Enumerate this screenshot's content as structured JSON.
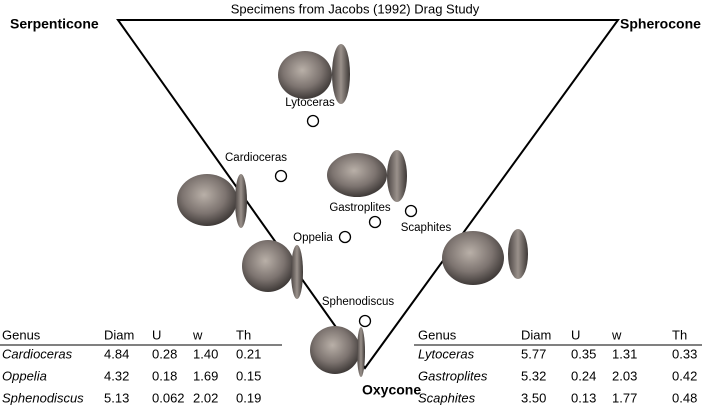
{
  "title": "Specimens from Jacobs (1992) Drag Study",
  "vertices": {
    "top_left": "Serpenticone",
    "top_right": "Spherocone",
    "bottom": "Oxycone"
  },
  "specimens": [
    {
      "label": "Lytoceras"
    },
    {
      "label": "Cardioceras"
    },
    {
      "label": "Gastroplites"
    },
    {
      "label": "Scaphites"
    },
    {
      "label": "Oppelia"
    },
    {
      "label": "Sphenodiscus"
    }
  ],
  "left_table": {
    "header": [
      "Genus",
      "Diam",
      "U",
      "w",
      "Th"
    ],
    "rows": [
      [
        "Cardioceras",
        "4.84",
        "0.28",
        "1.40",
        "0.21"
      ],
      [
        "Oppelia",
        "4.32",
        "0.18",
        "1.69",
        "0.15"
      ],
      [
        "Sphenodiscus",
        "5.13",
        "0.062",
        "2.02",
        "0.19"
      ]
    ]
  },
  "right_table": {
    "header": [
      "Genus",
      "Diam",
      "U",
      "w",
      "Th"
    ],
    "rows": [
      [
        "Lytoceras",
        "5.77",
        "0.35",
        "1.31",
        "0.33"
      ],
      [
        "Gastroplites",
        "5.32",
        "0.24",
        "2.03",
        "0.42"
      ],
      [
        "Scaphites",
        "3.50",
        "0.13",
        "1.77",
        "0.48"
      ]
    ]
  }
}
